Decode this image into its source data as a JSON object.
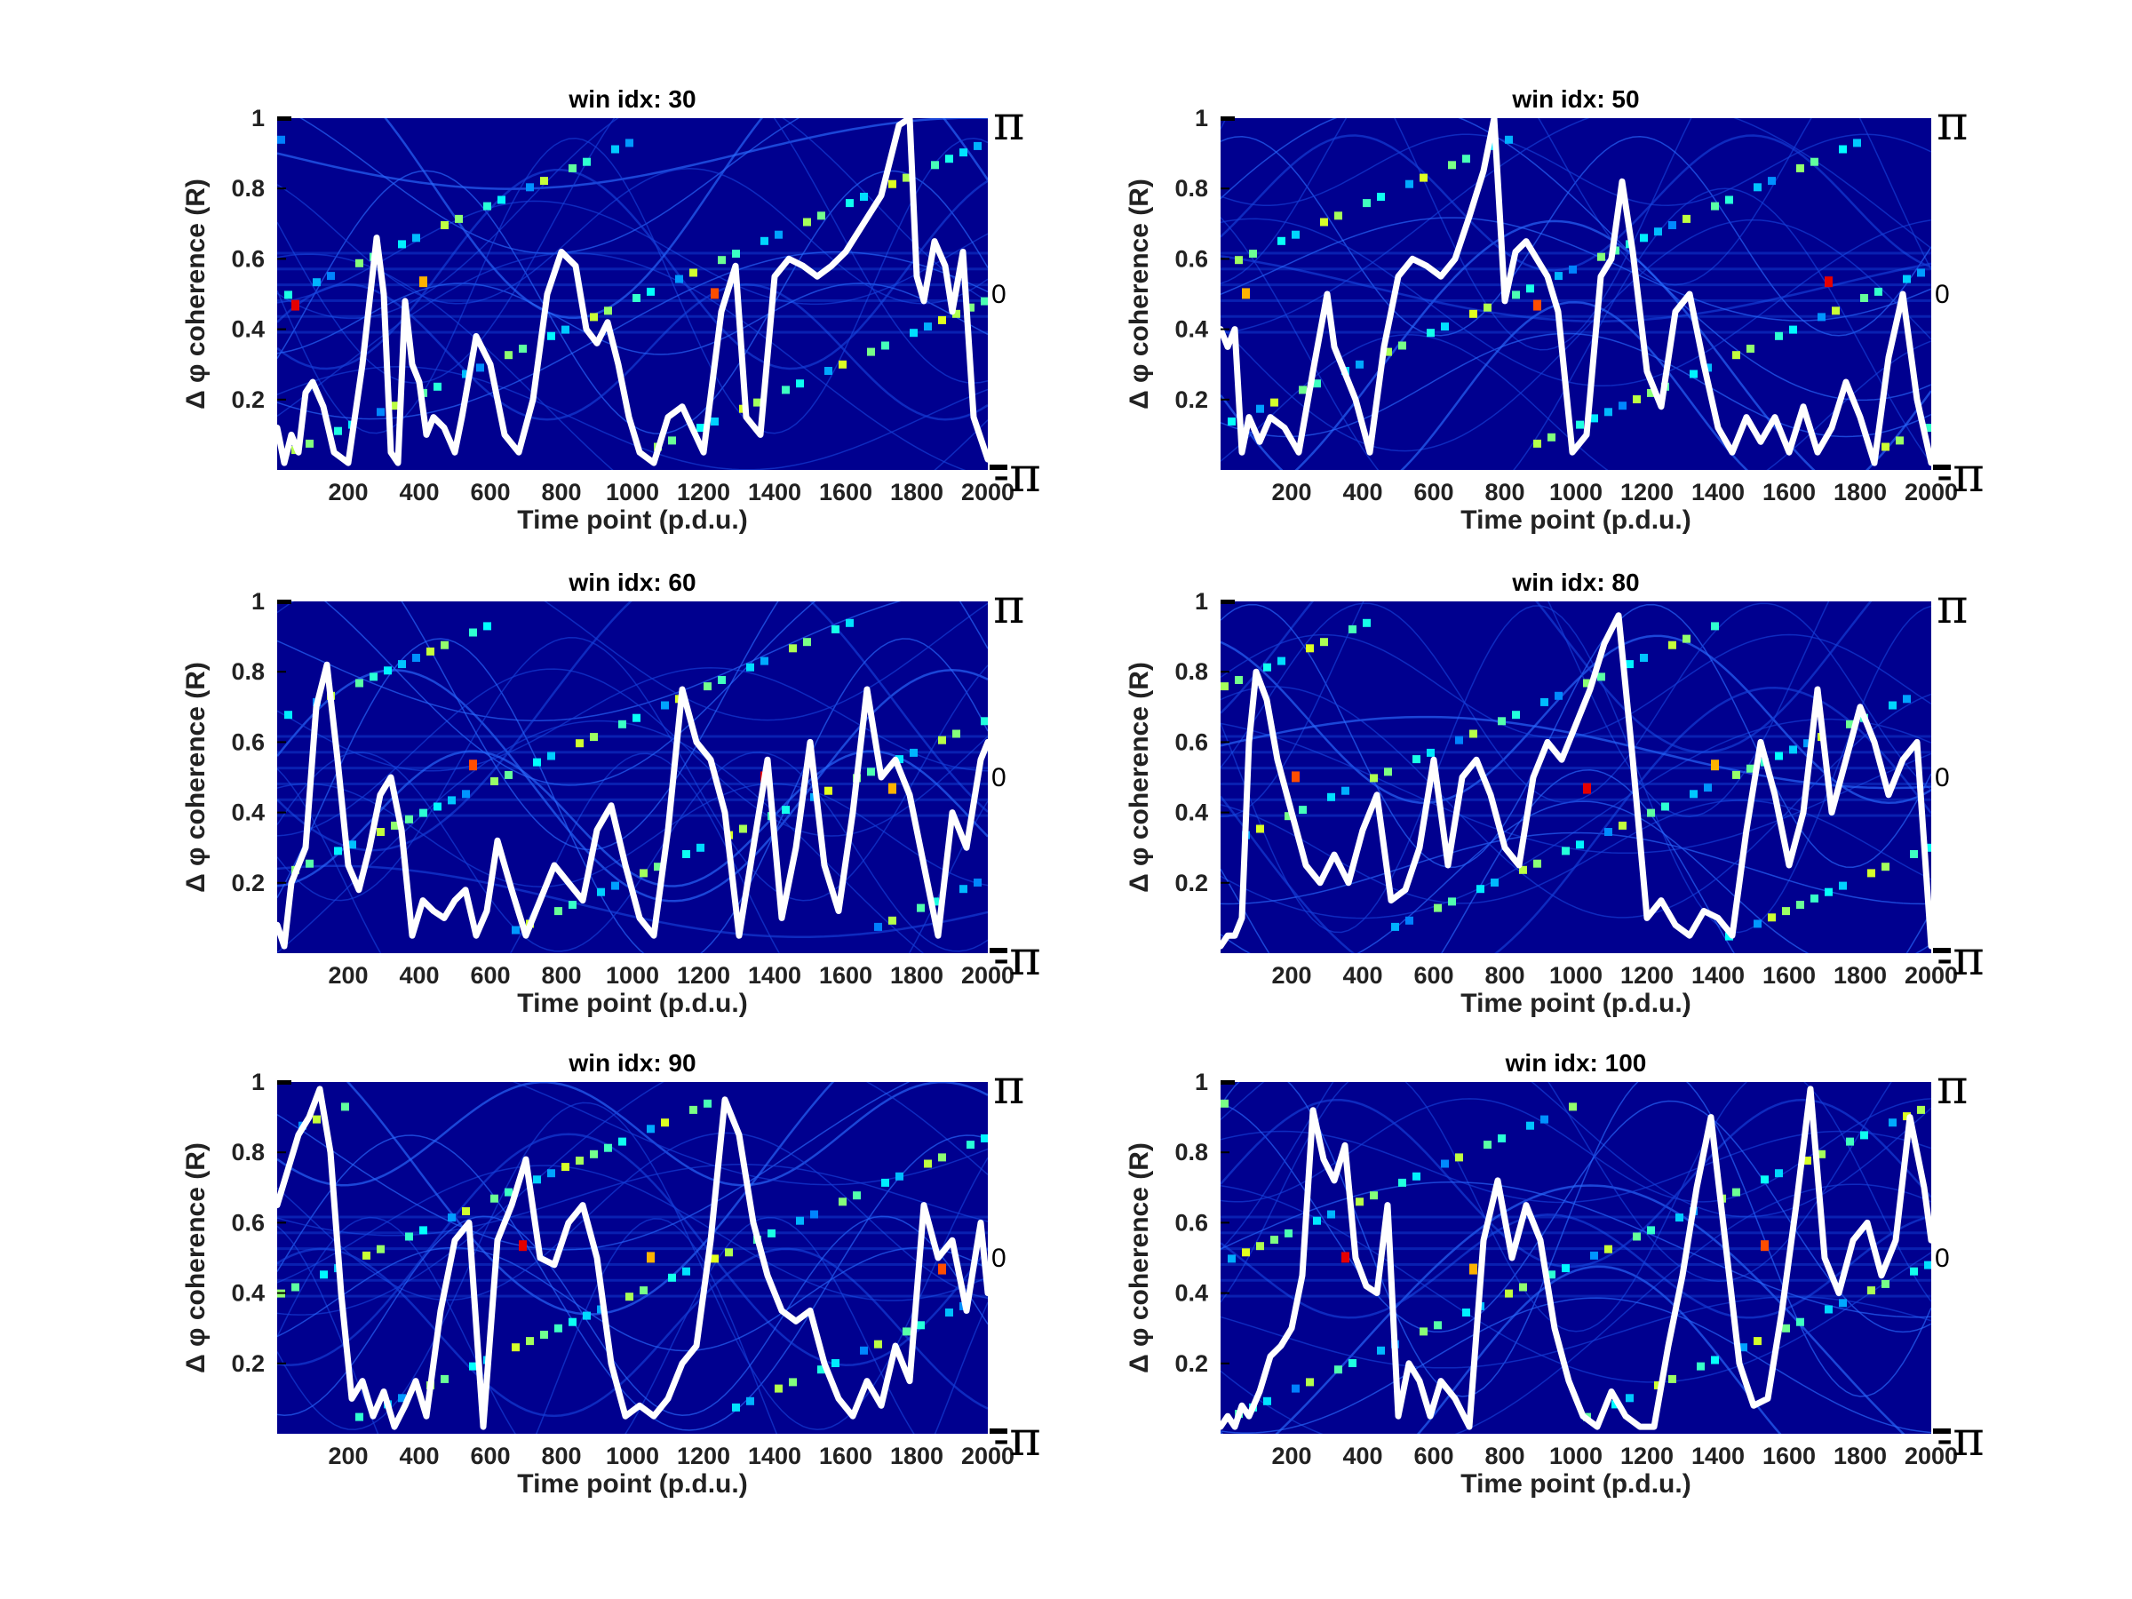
{
  "figure": {
    "background": "#ffffff",
    "heatmap_base_color": "#00008f",
    "line_color": "#ffffff"
  },
  "chart_data": [
    {
      "type": "heatmap",
      "title": "win idx: 30",
      "xlabel": "Time point (p.d.u.)",
      "ylabel": "Δ φ coherence (R)",
      "xlim": [
        0,
        2000
      ],
      "ylim": [
        0,
        1
      ],
      "xticks": [
        200,
        400,
        600,
        800,
        1000,
        1200,
        1400,
        1600,
        1800,
        2000
      ],
      "yticks": [
        0.2,
        0.4,
        0.6,
        0.8,
        1
      ],
      "right_axis_ticks": [
        "π",
        "0",
        "-π"
      ],
      "grid": false,
      "series": [
        {
          "type": "line",
          "x": [
            0,
            20,
            40,
            60,
            80,
            100,
            130,
            160,
            200,
            240,
            280,
            300,
            320,
            340,
            360,
            380,
            400,
            420,
            440,
            470,
            500,
            520,
            560,
            600,
            640,
            680,
            720,
            760,
            800,
            840,
            870,
            900,
            930,
            960,
            990,
            1020,
            1060,
            1100,
            1140,
            1200,
            1250,
            1290,
            1320,
            1360,
            1400,
            1440,
            1480,
            1520,
            1560,
            1600,
            1650,
            1700,
            1750,
            1780,
            1800,
            1820,
            1850,
            1880,
            1900,
            1930,
            1960,
            2000
          ],
          "y": [
            0.12,
            0.02,
            0.1,
            0.05,
            0.22,
            0.25,
            0.18,
            0.05,
            0.02,
            0.3,
            0.66,
            0.5,
            0.05,
            0.02,
            0.48,
            0.3,
            0.25,
            0.1,
            0.15,
            0.12,
            0.05,
            0.15,
            0.38,
            0.3,
            0.1,
            0.05,
            0.2,
            0.5,
            0.62,
            0.58,
            0.4,
            0.36,
            0.42,
            0.3,
            0.15,
            0.05,
            0.02,
            0.15,
            0.18,
            0.05,
            0.45,
            0.58,
            0.15,
            0.1,
            0.55,
            0.6,
            0.58,
            0.55,
            0.58,
            0.62,
            0.7,
            0.78,
            0.98,
            1.0,
            0.55,
            0.48,
            0.65,
            0.58,
            0.45,
            0.62,
            0.15,
            0.03
          ]
        }
      ]
    },
    {
      "type": "heatmap",
      "title": "win idx: 50",
      "xlabel": "Time point (p.d.u.)",
      "ylabel": "Δ φ coherence (R)",
      "xlim": [
        0,
        2000
      ],
      "ylim": [
        0,
        1
      ],
      "xticks": [
        200,
        400,
        600,
        800,
        1000,
        1200,
        1400,
        1600,
        1800,
        2000
      ],
      "yticks": [
        0.2,
        0.4,
        0.6,
        0.8,
        1
      ],
      "right_axis_ticks": [
        "π",
        "0",
        "-π"
      ],
      "grid": false,
      "series": [
        {
          "type": "line",
          "x": [
            0,
            20,
            40,
            60,
            80,
            110,
            140,
            180,
            220,
            260,
            300,
            320,
            340,
            380,
            420,
            460,
            500,
            540,
            580,
            620,
            660,
            700,
            740,
            770,
            800,
            830,
            860,
            890,
            920,
            950,
            990,
            1030,
            1070,
            1100,
            1130,
            1160,
            1200,
            1240,
            1280,
            1320,
            1360,
            1400,
            1440,
            1480,
            1520,
            1560,
            1600,
            1640,
            1680,
            1720,
            1760,
            1800,
            1840,
            1880,
            1920,
            1960,
            2000
          ],
          "y": [
            0.4,
            0.35,
            0.4,
            0.05,
            0.15,
            0.08,
            0.15,
            0.12,
            0.05,
            0.28,
            0.5,
            0.35,
            0.3,
            0.2,
            0.05,
            0.35,
            0.55,
            0.6,
            0.58,
            0.55,
            0.6,
            0.72,
            0.85,
            1.0,
            0.48,
            0.62,
            0.65,
            0.6,
            0.55,
            0.45,
            0.05,
            0.1,
            0.55,
            0.6,
            0.82,
            0.62,
            0.28,
            0.18,
            0.45,
            0.5,
            0.3,
            0.12,
            0.05,
            0.15,
            0.08,
            0.15,
            0.05,
            0.18,
            0.05,
            0.12,
            0.25,
            0.15,
            0.02,
            0.32,
            0.5,
            0.2,
            0.02
          ]
        }
      ]
    },
    {
      "type": "heatmap",
      "title": "win idx: 60",
      "xlabel": "Time point (p.d.u.)",
      "ylabel": "Δ φ coherence (R)",
      "xlim": [
        0,
        2000
      ],
      "ylim": [
        0,
        1
      ],
      "xticks": [
        200,
        400,
        600,
        800,
        1000,
        1200,
        1400,
        1600,
        1800,
        2000
      ],
      "yticks": [
        0.2,
        0.4,
        0.6,
        0.8,
        1
      ],
      "right_axis_ticks": [
        "π",
        "0",
        "-π"
      ],
      "grid": false,
      "series": [
        {
          "type": "line",
          "x": [
            0,
            20,
            40,
            60,
            80,
            110,
            140,
            170,
            200,
            230,
            260,
            290,
            320,
            350,
            380,
            410,
            440,
            470,
            500,
            530,
            560,
            590,
            620,
            660,
            700,
            740,
            780,
            820,
            860,
            900,
            940,
            980,
            1020,
            1060,
            1100,
            1140,
            1180,
            1220,
            1260,
            1300,
            1340,
            1380,
            1420,
            1460,
            1500,
            1540,
            1580,
            1620,
            1660,
            1700,
            1740,
            1780,
            1820,
            1860,
            1900,
            1940,
            1980,
            2000
          ],
          "y": [
            0.08,
            0.02,
            0.2,
            0.25,
            0.3,
            0.7,
            0.82,
            0.55,
            0.25,
            0.18,
            0.3,
            0.45,
            0.5,
            0.35,
            0.05,
            0.15,
            0.12,
            0.1,
            0.15,
            0.18,
            0.05,
            0.12,
            0.32,
            0.18,
            0.05,
            0.15,
            0.25,
            0.2,
            0.15,
            0.35,
            0.42,
            0.25,
            0.1,
            0.05,
            0.35,
            0.75,
            0.6,
            0.55,
            0.4,
            0.05,
            0.3,
            0.55,
            0.1,
            0.3,
            0.6,
            0.25,
            0.12,
            0.4,
            0.75,
            0.5,
            0.55,
            0.45,
            0.25,
            0.05,
            0.4,
            0.3,
            0.55,
            0.6
          ]
        }
      ]
    },
    {
      "type": "heatmap",
      "title": "win idx: 80",
      "xlabel": "Time point (p.d.u.)",
      "ylabel": "Δ φ coherence (R)",
      "xlim": [
        0,
        2000
      ],
      "ylim": [
        0,
        1
      ],
      "xticks": [
        200,
        400,
        600,
        800,
        1000,
        1200,
        1400,
        1600,
        1800,
        2000
      ],
      "yticks": [
        0.2,
        0.4,
        0.6,
        0.8,
        1
      ],
      "right_axis_ticks": [
        "π",
        "0",
        "-π"
      ],
      "grid": false,
      "series": [
        {
          "type": "line",
          "x": [
            0,
            20,
            40,
            60,
            80,
            100,
            130,
            160,
            200,
            240,
            280,
            320,
            360,
            400,
            440,
            480,
            520,
            560,
            600,
            640,
            680,
            720,
            760,
            800,
            840,
            880,
            920,
            960,
            1000,
            1040,
            1080,
            1120,
            1160,
            1200,
            1240,
            1280,
            1320,
            1360,
            1400,
            1440,
            1480,
            1520,
            1560,
            1600,
            1640,
            1680,
            1720,
            1760,
            1800,
            1840,
            1880,
            1920,
            1960,
            2000
          ],
          "y": [
            0.02,
            0.05,
            0.05,
            0.1,
            0.6,
            0.8,
            0.72,
            0.55,
            0.4,
            0.25,
            0.2,
            0.28,
            0.2,
            0.35,
            0.45,
            0.15,
            0.18,
            0.3,
            0.55,
            0.25,
            0.5,
            0.55,
            0.45,
            0.3,
            0.25,
            0.5,
            0.6,
            0.55,
            0.65,
            0.75,
            0.88,
            0.96,
            0.55,
            0.1,
            0.15,
            0.08,
            0.05,
            0.12,
            0.1,
            0.05,
            0.35,
            0.6,
            0.45,
            0.25,
            0.4,
            0.75,
            0.4,
            0.55,
            0.7,
            0.6,
            0.45,
            0.55,
            0.6,
            0.02
          ]
        }
      ]
    },
    {
      "type": "heatmap",
      "title": "win idx: 90",
      "xlabel": "Time point (p.d.u.)",
      "ylabel": "Δ φ coherence (R)",
      "xlim": [
        0,
        2000
      ],
      "ylim": [
        0,
        1
      ],
      "xticks": [
        200,
        400,
        600,
        800,
        1000,
        1200,
        1400,
        1600,
        1800,
        2000
      ],
      "yticks": [
        0.2,
        0.4,
        0.6,
        0.8,
        1
      ],
      "right_axis_ticks": [
        "π",
        "0",
        "-π"
      ],
      "grid": false,
      "series": [
        {
          "type": "line",
          "x": [
            0,
            30,
            60,
            90,
            120,
            150,
            180,
            210,
            240,
            270,
            300,
            330,
            360,
            390,
            420,
            460,
            500,
            540,
            580,
            620,
            660,
            700,
            740,
            780,
            820,
            860,
            900,
            940,
            980,
            1020,
            1060,
            1100,
            1140,
            1180,
            1220,
            1260,
            1300,
            1340,
            1380,
            1420,
            1460,
            1500,
            1540,
            1580,
            1620,
            1660,
            1700,
            1740,
            1780,
            1820,
            1860,
            1900,
            1940,
            1980,
            2000
          ],
          "y": [
            0.65,
            0.75,
            0.85,
            0.9,
            0.98,
            0.8,
            0.4,
            0.1,
            0.15,
            0.05,
            0.12,
            0.02,
            0.08,
            0.15,
            0.05,
            0.35,
            0.55,
            0.6,
            0.02,
            0.55,
            0.65,
            0.78,
            0.5,
            0.48,
            0.6,
            0.65,
            0.5,
            0.2,
            0.05,
            0.08,
            0.05,
            0.1,
            0.2,
            0.25,
            0.55,
            0.95,
            0.85,
            0.6,
            0.45,
            0.35,
            0.32,
            0.35,
            0.2,
            0.1,
            0.05,
            0.15,
            0.08,
            0.25,
            0.15,
            0.65,
            0.5,
            0.55,
            0.35,
            0.6,
            0.4
          ]
        }
      ]
    },
    {
      "type": "heatmap",
      "title": "win idx: 100",
      "xlabel": "Time point (p.d.u.)",
      "ylabel": "Δ φ coherence (R)",
      "xlim": [
        0,
        2000
      ],
      "ylim": [
        0,
        1
      ],
      "xticks": [
        200,
        400,
        600,
        800,
        1000,
        1200,
        1400,
        1600,
        1800,
        2000
      ],
      "yticks": [
        0.2,
        0.4,
        0.6,
        0.8,
        1
      ],
      "right_axis_ticks": [
        "π",
        "0",
        "-π"
      ],
      "grid": false,
      "series": [
        {
          "type": "line",
          "x": [
            0,
            20,
            40,
            60,
            80,
            110,
            140,
            170,
            200,
            230,
            260,
            290,
            320,
            350,
            380,
            410,
            440,
            470,
            500,
            530,
            560,
            590,
            620,
            660,
            700,
            740,
            780,
            820,
            860,
            900,
            940,
            980,
            1020,
            1060,
            1100,
            1140,
            1180,
            1220,
            1260,
            1300,
            1340,
            1380,
            1420,
            1460,
            1500,
            1540,
            1580,
            1620,
            1660,
            1700,
            1740,
            1780,
            1820,
            1860,
            1900,
            1940,
            1980,
            2000
          ],
          "y": [
            0.02,
            0.05,
            0.02,
            0.08,
            0.05,
            0.12,
            0.22,
            0.25,
            0.3,
            0.45,
            0.92,
            0.78,
            0.72,
            0.82,
            0.5,
            0.42,
            0.4,
            0.65,
            0.05,
            0.2,
            0.15,
            0.05,
            0.15,
            0.1,
            0.02,
            0.55,
            0.72,
            0.5,
            0.65,
            0.55,
            0.3,
            0.15,
            0.05,
            0.02,
            0.12,
            0.05,
            0.02,
            0.02,
            0.25,
            0.45,
            0.7,
            0.9,
            0.55,
            0.2,
            0.08,
            0.1,
            0.35,
            0.65,
            0.98,
            0.5,
            0.4,
            0.55,
            0.6,
            0.45,
            0.55,
            0.9,
            0.7,
            0.55
          ]
        }
      ]
    }
  ]
}
